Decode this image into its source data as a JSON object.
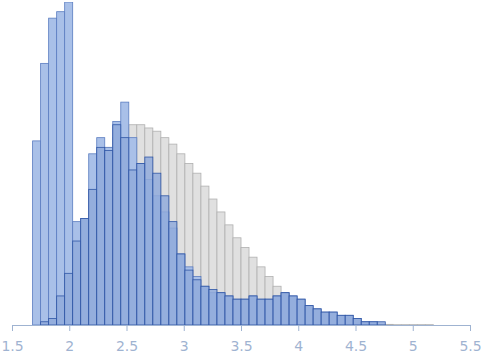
{
  "chart_data": {
    "type": "histogram",
    "bins": [
      1.68,
      1.75,
      1.82,
      1.89,
      1.96,
      2.03,
      2.1,
      2.17,
      2.24,
      2.31,
      2.38,
      2.45,
      2.52,
      2.59,
      2.66,
      2.73,
      2.8,
      2.87,
      2.94,
      3.01,
      3.08,
      3.15,
      3.22,
      3.29,
      3.36,
      3.43,
      3.5,
      3.57,
      3.64,
      3.71,
      3.78,
      3.85,
      3.92,
      3.99,
      4.06,
      4.13,
      4.2,
      4.27,
      4.34,
      4.41,
      4.48,
      4.55,
      4.62,
      4.69,
      4.76,
      4.83,
      4.9,
      4.97,
      5.04,
      5.11,
      5.18
    ],
    "series": [
      {
        "color": "#e0e0e0",
        "values": [
          0,
          0,
          0,
          2,
          8,
          17,
          30,
          42,
          50,
          55,
          58,
          61,
          62,
          62,
          61,
          60,
          58,
          56,
          53,
          50,
          47,
          43,
          39,
          35,
          31,
          27,
          24,
          21,
          18,
          15,
          12,
          10,
          8,
          6,
          5,
          4,
          3,
          2,
          1.5,
          1,
          0.8,
          0.5,
          0.3,
          0.2,
          0.2,
          0.1,
          0.1,
          0.1,
          0.1,
          0.1
        ]
      },
      {
        "color": "#a9c0e8",
        "values": [
          57,
          81,
          95,
          97,
          100,
          32,
          33,
          53,
          58,
          55,
          63,
          69,
          58,
          50,
          45,
          40,
          35,
          30,
          22,
          18,
          15,
          12,
          10,
          10,
          9,
          8,
          8,
          9,
          8,
          8,
          9,
          10,
          9,
          8,
          6,
          5,
          4,
          4,
          3,
          3,
          2,
          1,
          1,
          0,
          0,
          0,
          0,
          0,
          0,
          0
        ]
      },
      {
        "color": "#90aadb",
        "values": [
          0,
          1,
          2,
          9,
          16,
          26,
          33,
          42,
          55,
          54,
          62,
          58,
          48,
          50,
          52,
          47,
          40,
          32,
          22,
          17,
          14,
          12,
          11,
          10,
          9,
          8,
          8,
          9,
          8,
          8,
          9,
          10,
          9,
          8,
          6,
          5,
          4,
          4,
          3,
          3,
          2,
          1,
          1,
          1,
          0,
          0,
          0,
          0,
          0,
          0
        ]
      }
    ],
    "xlim": [
      1.5,
      5.5
    ],
    "xticks": [
      1.5,
      2,
      2.5,
      3,
      3.5,
      4,
      4.5,
      5,
      5.5
    ],
    "ylim": [
      0,
      100
    ],
    "tick_labels": "x"
  }
}
